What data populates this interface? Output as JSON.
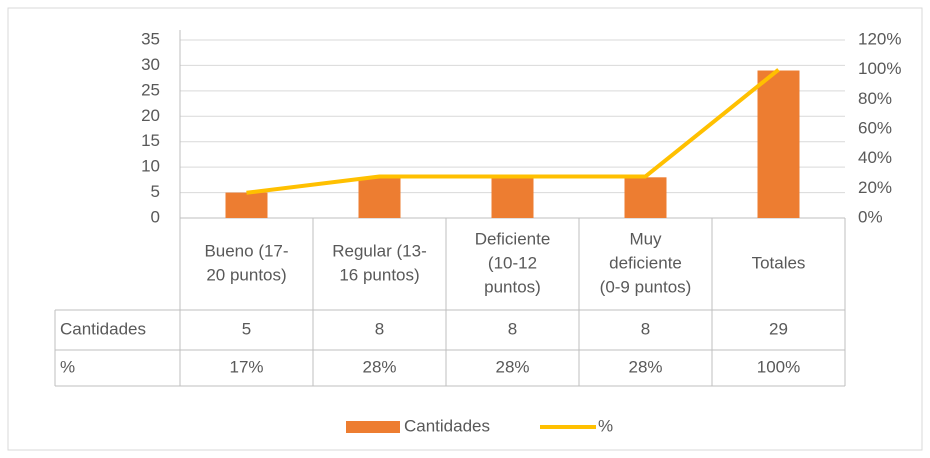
{
  "chart_data": {
    "type": "bar",
    "categories": [
      [
        "Bueno (17-",
        "20 puntos)"
      ],
      [
        "Regular (13-",
        "16 puntos)"
      ],
      [
        "Deficiente",
        "(10-12",
        "puntos)"
      ],
      [
        "Muy",
        "deficiente",
        "(0-9 puntos)"
      ],
      [
        "Totales"
      ]
    ],
    "series": [
      {
        "name": "Cantidades",
        "type": "bar",
        "color": "#ed7d31",
        "values": [
          5,
          8,
          8,
          8,
          29
        ]
      },
      {
        "name": "%",
        "type": "line",
        "axis": "y2",
        "color": "#ffc000",
        "values": [
          17,
          28,
          28,
          28,
          100
        ],
        "value_labels": [
          "17%",
          "28%",
          "28%",
          "28%",
          "100%"
        ]
      }
    ],
    "ylim": [
      0,
      35
    ],
    "yticks": [
      0,
      5,
      10,
      15,
      20,
      25,
      30,
      35
    ],
    "y2lim": [
      0,
      120
    ],
    "y2ticks": [
      {
        "value": 0,
        "label": "0%"
      },
      {
        "value": 20,
        "label": "20%"
      },
      {
        "value": 40,
        "label": "40%"
      },
      {
        "value": 60,
        "label": "60%"
      },
      {
        "value": 80,
        "label": "80%"
      },
      {
        "value": 100,
        "label": "100%"
      },
      {
        "value": 120,
        "label": "120%"
      }
    ],
    "grid": true,
    "legend": "bottom"
  }
}
